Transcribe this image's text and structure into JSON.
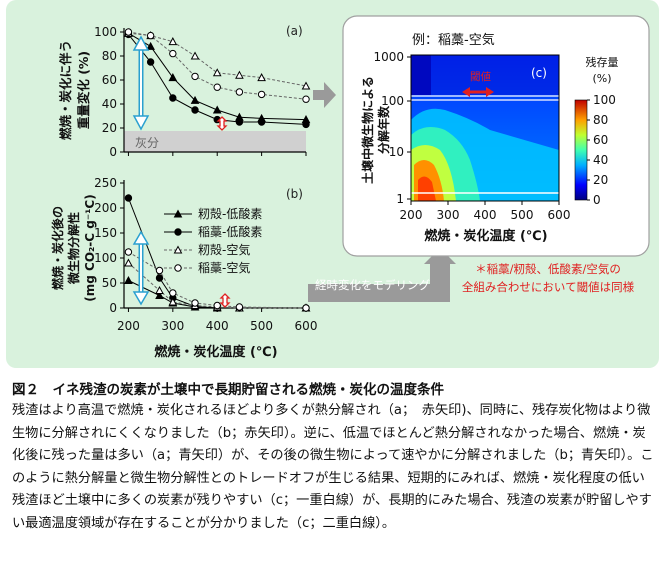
{
  "panel_a": {
    "label": "(a)",
    "ylabel": "燃焼・炭化に伴う重量変化 (%)",
    "ylabel_lines": [
      "燃焼・炭化に伴う",
      "重量変化 (%)"
    ],
    "yticks": [
      "0",
      "20",
      "40",
      "60",
      "80",
      "100"
    ],
    "ash_label": "灰分"
  },
  "panel_b": {
    "label": "(b)",
    "ylabel_lines": [
      "燃焼・炭化後の",
      "微生物分解性",
      "(mg CO₂-C g⁻¹C)"
    ],
    "yticks": [
      "0",
      "50",
      "100",
      "150",
      "200",
      "250"
    ],
    "xlabel": "燃焼・炭化温度 (℃)",
    "xticks": [
      "200",
      "300",
      "400",
      "500",
      "600"
    ]
  },
  "legend": [
    "籾殻-低酸素",
    "稲藁-低酸素",
    "籾殻-空気",
    "稲藁-空気"
  ],
  "panel_c": {
    "title": "例：稲藁-空気",
    "label": "(c)",
    "ylabel_lines": [
      "土壌中微生物による",
      "分解年数"
    ],
    "yticks": [
      "1",
      "10",
      "100",
      "1000"
    ],
    "xticks": [
      "200",
      "300",
      "400",
      "500",
      "600"
    ],
    "xlabel": "燃焼・炭化温度 (℃)",
    "threshold_label": "閾値",
    "colorbar_title_lines": [
      "残存量",
      "(%)"
    ],
    "colorbar_ticks": [
      "0",
      "20",
      "40",
      "60",
      "80",
      "100"
    ]
  },
  "arrow_label": "経時変化をモデリング",
  "note_lines": [
    "＊稲藁/籾殻、低酸素/空気の",
    "全組み合わせにおいて閾値は同様"
  ],
  "chart_data": [
    {
      "type": "line",
      "title": "(a)",
      "xlabel": "",
      "ylabel": "燃焼・炭化に伴う重量変化 (%)",
      "xlim": [
        190,
        600
      ],
      "ylim": [
        0,
        100
      ],
      "x": [
        200,
        250,
        300,
        350,
        400,
        450,
        500,
        600
      ],
      "series": [
        {
          "name": "籾殻-低酸素",
          "values": [
            99,
            88,
            62,
            43,
            35,
            29,
            28,
            27
          ]
        },
        {
          "name": "稲藁-低酸素",
          "values": [
            98,
            75,
            45,
            35,
            27,
            25,
            25,
            23
          ]
        },
        {
          "name": "籾殻-空気",
          "values": [
            99,
            97,
            92,
            80,
            66,
            64,
            62,
            55
          ]
        },
        {
          "name": "稲藁-空気",
          "values": [
            100,
            97,
            82,
            63,
            54,
            50,
            48,
            44
          ]
        }
      ]
    },
    {
      "type": "line",
      "title": "(b)",
      "xlabel": "燃焼・炭化温度 (℃)",
      "ylabel": "燃焼・炭化後の微生物分解性 (mg CO₂-C g⁻¹C)",
      "xlim": [
        190,
        600
      ],
      "ylim": [
        0,
        250
      ],
      "x": [
        200,
        270,
        300,
        350,
        400,
        450,
        600
      ],
      "series": [
        {
          "name": "籾殻-低酸素",
          "values": [
            55,
            25,
            10,
            2,
            0,
            0,
            0
          ]
        },
        {
          "name": "稲藁-低酸素",
          "values": [
            220,
            60,
            20,
            3,
            0,
            0,
            0
          ]
        },
        {
          "name": "籾殻-空気",
          "values": [
            90,
            35,
            12,
            5,
            2,
            0,
            0
          ]
        },
        {
          "name": "稲藁-空気",
          "values": [
            112,
            75,
            30,
            10,
            5,
            2,
            0
          ]
        }
      ]
    },
    {
      "type": "heatmap",
      "title": "例：稲藁-空気",
      "xlabel": "燃焼・炭化温度 (℃)",
      "ylabel": "土壌中微生物による分解年数",
      "xlim": [
        200,
        600
      ],
      "ylim": [
        1,
        1000
      ],
      "yscale": "log",
      "colorbar": {
        "title": "残存量 (%)",
        "range": [
          0,
          100
        ]
      }
    }
  ]
}
